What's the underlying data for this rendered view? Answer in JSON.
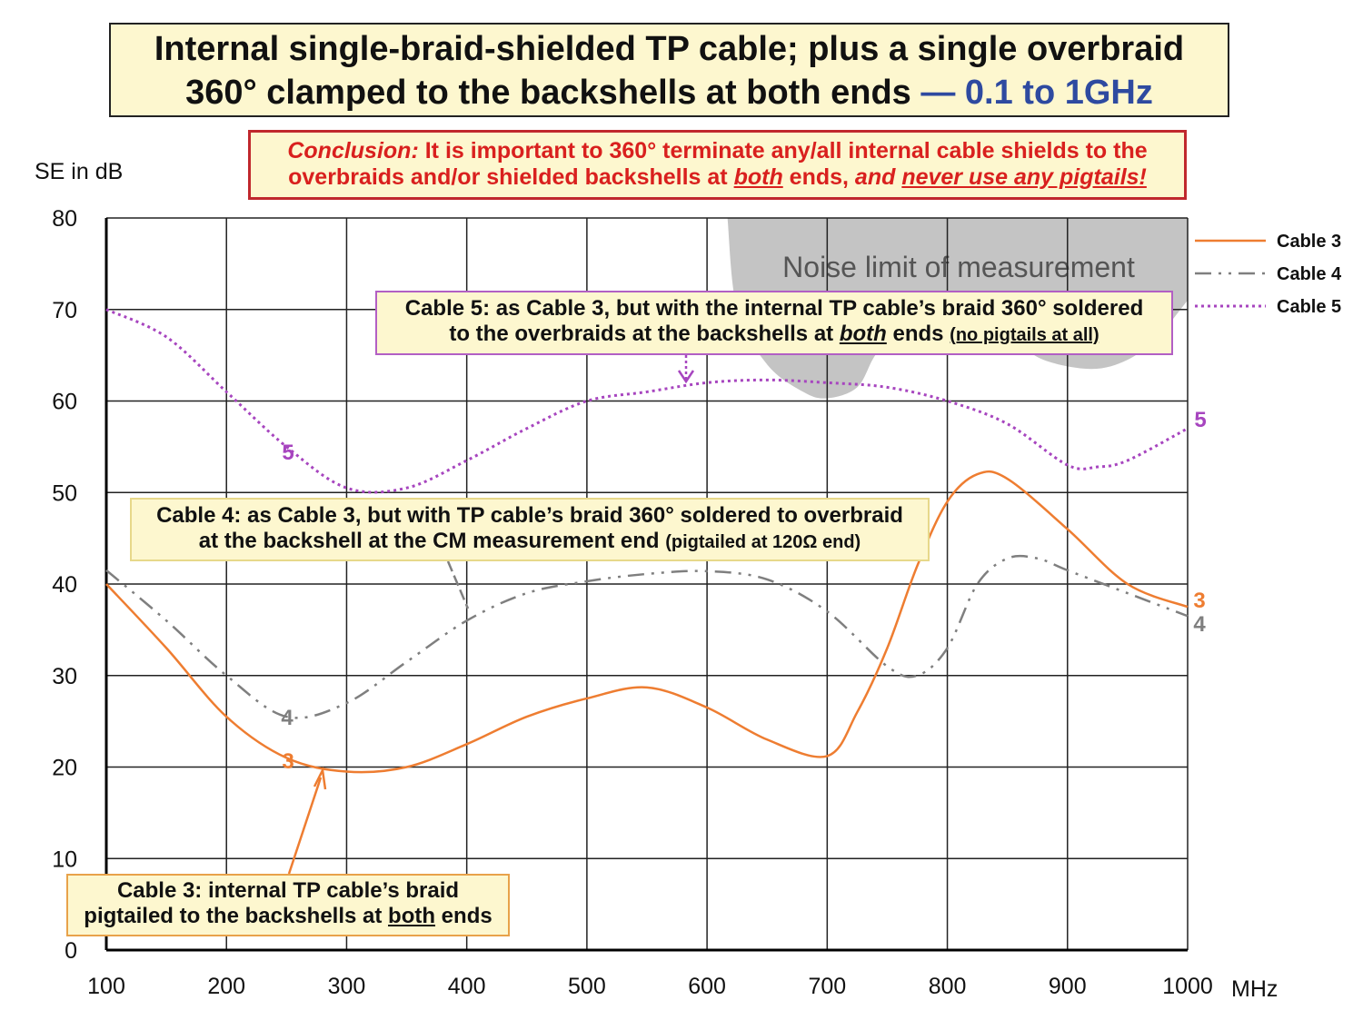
{
  "title": {
    "line1": "Internal single-braid-shielded TP cable; plus a single overbraid",
    "line2": "360° clamped to the backshells at both ends",
    "line2_accent": "— 0.1 to 1GHz"
  },
  "conclusion": {
    "lead": "Conclusion:",
    "text1": " It is important to 360° terminate any/all internal cable shields to the",
    "text2": "overbraids and/or shielded backshells at ",
    "both": "both",
    "text3": " ends, ",
    "and": "and ",
    "never": "never use any pigtails!"
  },
  "annotations": {
    "cable5": {
      "l1": "Cable 5: as Cable 3, but with the internal TP cable’s braid 360° soldered",
      "l2a": "to the overbraids at the backshells at ",
      "both": "both",
      "l2b": " ends ",
      "small": "(no pigtails at all)"
    },
    "cable4": {
      "l1": "Cable 4: as Cable 3, but with TP cable’s braid 360° soldered to overbraid",
      "l2": "at the backshell at the CM measurement end ",
      "small": "(pigtailed at 120Ω end)"
    },
    "cable3": {
      "l1": "Cable 3: internal TP cable’s braid",
      "l2a": "pigtailed to the backshells at ",
      "both": "both",
      "l2b": " ends"
    },
    "noise": "Noise limit of measurement"
  },
  "colors": {
    "cable3": "#ee7d31",
    "cable4": "#7f7f7f",
    "cable5": "#a745bf",
    "noise": "#c4c4c4"
  },
  "chart_data": {
    "type": "line",
    "title": "Internal single-braid-shielded TP cable; plus a single overbraid 360° clamped to the backshells at both ends — 0.1 to 1GHz",
    "ylabel": "SE in dB",
    "xlabel": "MHz",
    "xlim": [
      100,
      1000
    ],
    "ylim": [
      0,
      80
    ],
    "xticks": [
      100,
      200,
      300,
      400,
      500,
      600,
      700,
      800,
      900,
      1000
    ],
    "yticks": [
      0,
      10,
      20,
      30,
      40,
      50,
      60,
      70,
      80
    ],
    "grid": true,
    "legend": "right",
    "series": [
      {
        "name": "Cable 3",
        "label": "3",
        "x": [
          100,
          150,
          200,
          250,
          300,
          350,
          400,
          450,
          500,
          550,
          600,
          650,
          700,
          725,
          750,
          775,
          800,
          825,
          850,
          900,
          950,
          1000
        ],
        "y": [
          40,
          33,
          25.5,
          21,
          19.5,
          20,
          22.5,
          25.5,
          27.5,
          28.7,
          26.5,
          23,
          21.2,
          26,
          33,
          42,
          49,
          52,
          51.5,
          46,
          40,
          37.5
        ]
      },
      {
        "name": "Cable 4",
        "label": "4",
        "x": [
          100,
          150,
          200,
          250,
          300,
          350,
          400,
          450,
          500,
          550,
          600,
          650,
          700,
          750,
          775,
          800,
          825,
          850,
          875,
          900,
          950,
          1000
        ],
        "y": [
          41.5,
          36,
          30,
          25.5,
          27,
          31.5,
          36,
          39,
          40.3,
          41.1,
          41.4,
          40.5,
          37,
          31,
          30,
          33,
          40,
          42.8,
          42.8,
          41.5,
          39,
          36.5
        ]
      },
      {
        "name": "Cable 5",
        "label": "5",
        "x": [
          100,
          150,
          200,
          250,
          300,
          350,
          400,
          450,
          500,
          550,
          600,
          650,
          700,
          750,
          800,
          850,
          900,
          925,
          950,
          1000
        ],
        "y": [
          70,
          67,
          61,
          55,
          50.5,
          50.5,
          53.5,
          57,
          60,
          61,
          62,
          62.3,
          62,
          61.5,
          60,
          57.5,
          53,
          52.8,
          53.5,
          57
        ]
      }
    ],
    "noise_floor": {
      "x": [
        617,
        625,
        650,
        680,
        700,
        725,
        740,
        760,
        820,
        850,
        880,
        920,
        950,
        975,
        1000
      ],
      "y": [
        80,
        70,
        64,
        61,
        60.3,
        61.5,
        65,
        68,
        68,
        67,
        64.5,
        63.5,
        64.5,
        67,
        71
      ]
    }
  }
}
